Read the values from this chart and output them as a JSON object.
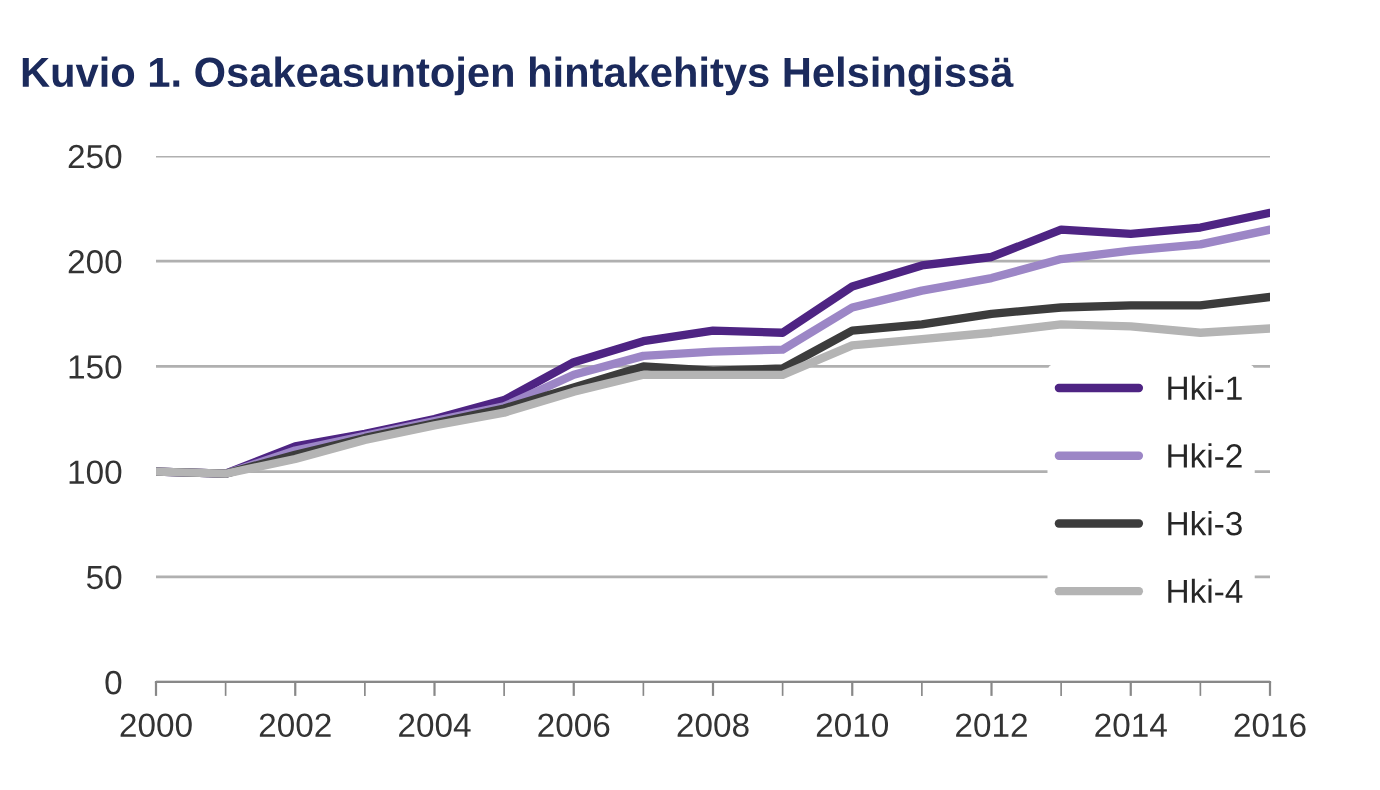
{
  "chart_data": {
    "type": "line",
    "title": "Kuvio 1. Osakeasuntojen hintakehitys Helsingissä",
    "x": [
      2000,
      2001,
      2002,
      2003,
      2004,
      2005,
      2006,
      2007,
      2008,
      2009,
      2010,
      2011,
      2012,
      2013,
      2014,
      2015,
      2016
    ],
    "series": [
      {
        "name": "Hki-1",
        "color": "#4e2483",
        "values": [
          100,
          99,
          112,
          118,
          125,
          134,
          152,
          162,
          167,
          166,
          188,
          198,
          202,
          215,
          213,
          216,
          223
        ]
      },
      {
        "name": "Hki-2",
        "color": "#9c86c6",
        "values": [
          100,
          99,
          110,
          117,
          124,
          131,
          146,
          155,
          157,
          158,
          178,
          186,
          192,
          201,
          205,
          208,
          215
        ]
      },
      {
        "name": "Hki-3",
        "color": "#3c3c3c",
        "values": [
          100,
          99,
          108,
          116,
          123,
          130,
          140,
          150,
          148,
          149,
          167,
          170,
          175,
          178,
          179,
          179,
          183
        ]
      },
      {
        "name": "Hki-4",
        "color": "#b4b4b4",
        "values": [
          100,
          99,
          106,
          115,
          122,
          128,
          138,
          146,
          146,
          146,
          160,
          163,
          166,
          170,
          169,
          166,
          168
        ]
      }
    ],
    "xlim": [
      2000,
      2016
    ],
    "xticks": [
      2000,
      2002,
      2004,
      2006,
      2008,
      2010,
      2012,
      2014,
      2016
    ],
    "ylim": [
      0,
      250
    ],
    "yticks": [
      0,
      50,
      100,
      150,
      200,
      250
    ],
    "grid": "y",
    "legend": "right",
    "marker": "none",
    "line_style": "solid"
  }
}
